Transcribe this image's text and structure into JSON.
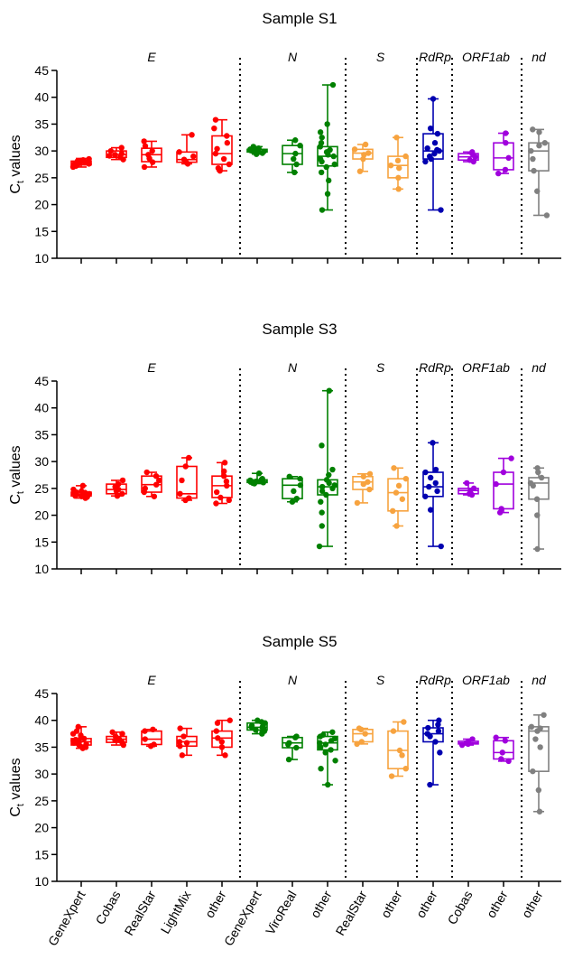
{
  "chart_data": {
    "type": "boxplot",
    "y_axis_label_main": "C",
    "y_axis_label_sub": "t",
    "y_axis_label_rest": " values",
    "ylim": [
      10,
      45
    ],
    "yticks": [
      10,
      15,
      20,
      25,
      30,
      35,
      40,
      45
    ],
    "gene_groups": [
      {
        "label": "E",
        "start": 0,
        "end": 4
      },
      {
        "label": "N",
        "start": 5,
        "end": 7
      },
      {
        "label": "S",
        "start": 8,
        "end": 9
      },
      {
        "label": "RdRp",
        "start": 10,
        "end": 10
      },
      {
        "label": "ORF1ab",
        "start": 11,
        "end": 12
      },
      {
        "label": "nd",
        "start": 13,
        "end": 13
      }
    ],
    "categories": [
      "GeneXpert",
      "Cobas",
      "RealStar",
      "LightMix",
      "other",
      "GeneXpert",
      "ViroReal",
      "other",
      "RealStar",
      "other",
      "other",
      "Cobas",
      "other",
      "other"
    ],
    "category_colors": [
      "#ff0000",
      "#ff0000",
      "#ff0000",
      "#ff0000",
      "#ff0000",
      "#008000",
      "#008000",
      "#008000",
      "#f7a33f",
      "#f7a33f",
      "#0000b0",
      "#a000dd",
      "#a000dd",
      "#808080"
    ],
    "panels": [
      {
        "title": "Sample S1",
        "boxes": [
          {
            "min": 27.0,
            "q1": 27.4,
            "median": 27.7,
            "q3": 28.1,
            "max": 28.6,
            "points": [
              27.0,
              27.2,
              27.3,
              27.4,
              27.5,
              27.5,
              27.6,
              27.7,
              27.7,
              27.8,
              27.8,
              27.9,
              28.0,
              28.1,
              28.2,
              28.3,
              28.5
            ]
          },
          {
            "min": 28.4,
            "q1": 28.8,
            "median": 29.3,
            "q3": 30.0,
            "max": 30.6,
            "points": [
              28.4,
              28.8,
              29.1,
              29.3,
              29.5,
              30.0,
              30.6
            ]
          },
          {
            "min": 27.0,
            "q1": 28.0,
            "median": 29.3,
            "q3": 30.5,
            "max": 31.8,
            "points": [
              27.0,
              27.9,
              28.6,
              29.3,
              30.0,
              30.9,
              31.8
            ]
          },
          {
            "min": 27.6,
            "q1": 27.9,
            "median": 28.4,
            "q3": 29.8,
            "max": 33.0,
            "points": [
              27.6,
              27.9,
              28.4,
              29.0,
              29.8,
              33.0
            ]
          },
          {
            "min": 26.3,
            "q1": 27.5,
            "median": 29.5,
            "q3": 32.8,
            "max": 35.8,
            "points": [
              26.3,
              26.8,
              27.5,
              28.5,
              29.5,
              30.4,
              31.5,
              32.8,
              34.2,
              35.8
            ]
          },
          {
            "min": 29.4,
            "q1": 29.8,
            "median": 30.0,
            "q3": 30.3,
            "max": 30.8,
            "points": [
              29.4,
              29.6,
              29.8,
              29.9,
              30.0,
              30.0,
              30.1,
              30.2,
              30.3,
              30.5,
              30.8
            ]
          },
          {
            "min": 26.0,
            "q1": 27.5,
            "median": 29.5,
            "q3": 31.0,
            "max": 32.0,
            "points": [
              26.0,
              27.5,
              28.5,
              29.5,
              31.0,
              32.0
            ]
          },
          {
            "min": 19.0,
            "q1": 27.2,
            "median": 29.0,
            "q3": 30.8,
            "max": 42.3,
            "points": [
              19.0,
              22.0,
              24.5,
              26.0,
              27.0,
              27.5,
              28.0,
              28.5,
              29.0,
              29.3,
              29.8,
              30.2,
              30.8,
              31.5,
              32.5,
              33.5,
              35.0,
              42.3
            ]
          },
          {
            "min": 26.2,
            "q1": 28.5,
            "median": 29.6,
            "q3": 30.3,
            "max": 31.2,
            "points": [
              26.2,
              28.5,
              29.3,
              29.6,
              30.3,
              31.2
            ]
          },
          {
            "min": 22.9,
            "q1": 25.0,
            "median": 27.3,
            "q3": 29.0,
            "max": 32.5,
            "points": [
              22.9,
              25.0,
              26.8,
              27.3,
              28.2,
              29.0,
              32.5
            ]
          },
          {
            "min": 19.0,
            "q1": 28.5,
            "median": 30.0,
            "q3": 33.2,
            "max": 39.7,
            "points": [
              19.0,
              28.0,
              28.5,
              29.0,
              29.5,
              30.0,
              30.2,
              30.5,
              31.5,
              33.2,
              34.2,
              39.7
            ]
          },
          {
            "min": 28.0,
            "q1": 28.3,
            "median": 28.9,
            "q3": 29.5,
            "max": 29.8,
            "points": [
              28.0,
              28.3,
              28.9,
              29.5,
              29.8
            ]
          },
          {
            "min": 25.8,
            "q1": 26.5,
            "median": 28.7,
            "q3": 31.5,
            "max": 33.3,
            "points": [
              25.8,
              26.5,
              28.7,
              31.5,
              33.3
            ]
          },
          {
            "min": 18.0,
            "q1": 26.3,
            "median": 30.0,
            "q3": 31.5,
            "max": 34.0,
            "points": [
              18.0,
              22.5,
              26.3,
              28.5,
              30.0,
              31.0,
              31.5,
              33.5,
              34.0
            ]
          }
        ]
      },
      {
        "title": "Sample S3",
        "boxes": [
          {
            "min": 23.2,
            "q1": 23.6,
            "median": 23.9,
            "q3": 24.3,
            "max": 25.5,
            "points": [
              23.2,
              23.4,
              23.5,
              23.6,
              23.7,
              23.8,
              23.9,
              23.9,
              24.0,
              24.1,
              24.2,
              24.3,
              24.5,
              24.8,
              25.5
            ]
          },
          {
            "min": 23.6,
            "q1": 24.0,
            "median": 24.8,
            "q3": 25.8,
            "max": 26.5,
            "points": [
              23.6,
              24.0,
              24.5,
              24.8,
              25.3,
              25.8,
              26.5
            ]
          },
          {
            "min": 23.5,
            "q1": 24.3,
            "median": 25.7,
            "q3": 27.3,
            "max": 28.0,
            "points": [
              23.5,
              24.3,
              25.0,
              25.7,
              26.5,
              27.3,
              28.0
            ]
          },
          {
            "min": 22.8,
            "q1": 23.2,
            "median": 24.0,
            "q3": 29.1,
            "max": 30.7,
            "points": [
              22.8,
              23.2,
              24.0,
              26.5,
              29.1,
              30.7
            ]
          },
          {
            "min": 22.2,
            "q1": 23.3,
            "median": 25.5,
            "q3": 27.3,
            "max": 29.8,
            "points": [
              22.2,
              22.8,
              23.3,
              24.3,
              25.5,
              26.3,
              27.3,
              28.2,
              29.8
            ]
          },
          {
            "min": 25.9,
            "q1": 26.1,
            "median": 26.3,
            "q3": 26.6,
            "max": 27.8,
            "points": [
              25.9,
              26.0,
              26.1,
              26.2,
              26.3,
              26.4,
              26.5,
              26.6,
              26.8,
              27.8
            ]
          },
          {
            "min": 22.5,
            "q1": 23.1,
            "median": 25.6,
            "q3": 26.8,
            "max": 27.2,
            "points": [
              22.5,
              23.1,
              24.5,
              25.6,
              26.8,
              27.2
            ]
          },
          {
            "min": 14.2,
            "q1": 23.8,
            "median": 25.3,
            "q3": 26.6,
            "max": 43.2,
            "points": [
              14.2,
              18.0,
              20.5,
              22.5,
              23.8,
              24.5,
              25.0,
              25.3,
              25.6,
              26.0,
              26.6,
              27.5,
              28.5,
              33.0,
              43.2
            ]
          },
          {
            "min": 22.3,
            "q1": 24.8,
            "median": 26.2,
            "q3": 27.2,
            "max": 27.7,
            "points": [
              22.3,
              24.8,
              25.8,
              26.2,
              27.2,
              27.7
            ]
          },
          {
            "min": 18.0,
            "q1": 20.8,
            "median": 24.2,
            "q3": 26.8,
            "max": 28.8,
            "points": [
              18.0,
              20.8,
              23.0,
              24.2,
              25.5,
              26.8,
              28.8
            ]
          },
          {
            "min": 14.2,
            "q1": 23.5,
            "median": 25.3,
            "q3": 28.0,
            "max": 33.5,
            "points": [
              14.2,
              21.0,
              23.5,
              24.5,
              25.3,
              26.0,
              27.0,
              28.0,
              28.5,
              33.5
            ]
          },
          {
            "min": 23.8,
            "q1": 24.0,
            "median": 24.6,
            "q3": 25.0,
            "max": 26.0,
            "points": [
              23.8,
              24.0,
              24.6,
              25.0,
              26.0
            ]
          },
          {
            "min": 20.5,
            "q1": 21.2,
            "median": 25.8,
            "q3": 28.0,
            "max": 30.6,
            "points": [
              20.5,
              21.2,
              25.8,
              28.0,
              30.6
            ]
          },
          {
            "min": 13.7,
            "q1": 23.0,
            "median": 26.0,
            "q3": 27.0,
            "max": 28.8,
            "points": [
              13.7,
              20.0,
              23.0,
              25.5,
              26.0,
              27.0,
              28.0,
              28.8
            ]
          }
        ]
      },
      {
        "title": "Sample S5",
        "boxes": [
          {
            "min": 34.8,
            "q1": 35.4,
            "median": 36.0,
            "q3": 36.6,
            "max": 38.8,
            "points": [
              34.8,
              35.0,
              35.2,
              35.4,
              35.6,
              35.8,
              36.0,
              36.0,
              36.2,
              36.4,
              36.6,
              36.8,
              37.2,
              37.5,
              38.0,
              38.8
            ]
          },
          {
            "min": 35.4,
            "q1": 35.9,
            "median": 36.5,
            "q3": 37.0,
            "max": 37.8,
            "points": [
              35.4,
              35.9,
              36.3,
              36.5,
              37.0,
              37.5,
              37.8
            ]
          },
          {
            "min": 35.2,
            "q1": 35.5,
            "median": 36.5,
            "q3": 38.0,
            "max": 38.3,
            "points": [
              35.2,
              35.5,
              36.5,
              38.0,
              38.3
            ]
          },
          {
            "min": 33.5,
            "q1": 35.2,
            "median": 36.0,
            "q3": 37.0,
            "max": 38.5,
            "points": [
              33.5,
              35.2,
              35.8,
              36.0,
              37.0,
              38.5
            ]
          },
          {
            "min": 33.5,
            "q1": 35.0,
            "median": 36.7,
            "q3": 38.0,
            "max": 40.0,
            "points": [
              33.5,
              35.0,
              36.0,
              36.7,
              38.0,
              39.5,
              40.0
            ]
          },
          {
            "min": 37.5,
            "q1": 38.2,
            "median": 38.7,
            "q3": 39.5,
            "max": 40.0,
            "points": [
              37.5,
              37.8,
              38.0,
              38.2,
              38.4,
              38.6,
              38.7,
              38.8,
              39.0,
              39.3,
              39.5,
              39.7,
              40.0
            ]
          },
          {
            "min": 32.7,
            "q1": 34.9,
            "median": 35.8,
            "q3": 36.8,
            "max": 37.0,
            "points": [
              32.7,
              34.9,
              35.5,
              35.8,
              36.8,
              37.0
            ]
          },
          {
            "min": 28.0,
            "q1": 34.5,
            "median": 35.8,
            "q3": 37.0,
            "max": 37.8,
            "points": [
              28.0,
              31.0,
              32.5,
              34.0,
              34.5,
              35.0,
              35.5,
              35.8,
              36.2,
              36.6,
              37.0,
              37.3,
              37.8
            ]
          },
          {
            "min": 35.6,
            "q1": 36.0,
            "median": 37.5,
            "q3": 38.3,
            "max": 38.5,
            "points": [
              35.6,
              36.0,
              37.5,
              38.3,
              38.5
            ]
          },
          {
            "min": 29.6,
            "q1": 31.0,
            "median": 34.4,
            "q3": 38.0,
            "max": 39.7,
            "points": [
              29.6,
              31.0,
              33.5,
              34.4,
              38.0,
              39.7
            ]
          },
          {
            "min": 28.0,
            "q1": 36.0,
            "median": 37.5,
            "q3": 38.6,
            "max": 40.0,
            "points": [
              28.0,
              34.0,
              36.0,
              37.0,
              37.5,
              38.0,
              38.6,
              39.2,
              40.0
            ]
          },
          {
            "min": 35.4,
            "q1": 35.6,
            "median": 35.8,
            "q3": 36.1,
            "max": 36.5,
            "points": [
              35.4,
              35.6,
              35.8,
              36.1,
              36.5
            ]
          },
          {
            "min": 32.4,
            "q1": 32.8,
            "median": 34.0,
            "q3": 36.2,
            "max": 36.8,
            "points": [
              32.4,
              32.8,
              34.0,
              36.2,
              36.8
            ]
          },
          {
            "min": 23.0,
            "q1": 30.5,
            "median": 38.0,
            "q3": 38.8,
            "max": 41.0,
            "points": [
              23.0,
              27.0,
              30.5,
              35.0,
              36.5,
              38.0,
              38.5,
              38.8,
              41.0
            ]
          }
        ]
      }
    ]
  }
}
